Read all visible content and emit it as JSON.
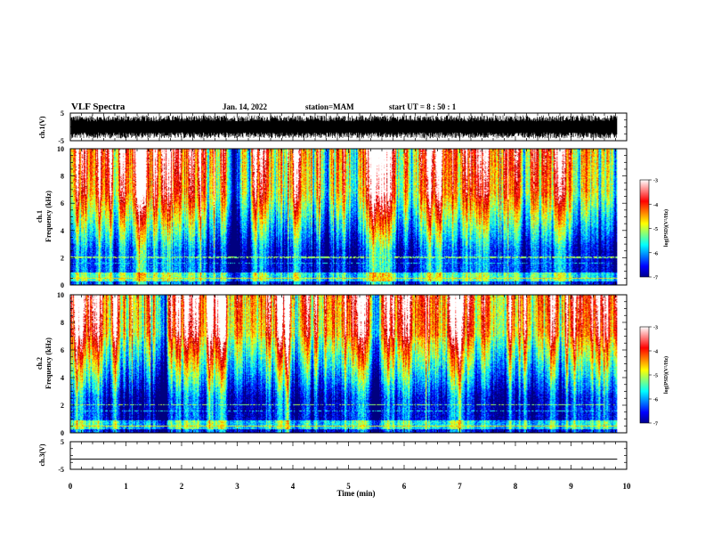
{
  "header": {
    "title": "VLF Spectra",
    "date": "Jan. 14, 2022",
    "station": "station=MAM",
    "start": "start UT =  8 : 50 : 1"
  },
  "chart_data": [
    {
      "type": "line",
      "name": "ch1-waveform",
      "ylabel": "ch.1(V)",
      "ylim": [
        -5,
        5
      ],
      "yticks": [
        "5",
        "-5"
      ],
      "note": "dense noise waveform filling approximately -4 to +4 V"
    },
    {
      "type": "heatmap",
      "name": "ch1-spectrogram",
      "ylabel_line1": "ch.1",
      "ylabel_line2": "Frequency (kHz)",
      "ylim": [
        0,
        10
      ],
      "yticks": [
        "0",
        "2",
        "4",
        "6",
        "8",
        "10"
      ],
      "colorbar": {
        "label": "log(PSD)(V²/Hz)",
        "range": [
          -7,
          -3
        ],
        "ticks": [
          "-3",
          "-4",
          "-5",
          "-6",
          "-7"
        ]
      },
      "note": "power increases with frequency: blue below ~3 kHz, cyan/green 3-6 kHz, yellow/red above 6 kHz; horizontal lines near 0.4 and 2 kHz"
    },
    {
      "type": "heatmap",
      "name": "ch2-spectrogram",
      "ylabel_line1": "ch.2",
      "ylabel_line2": "Frequency (kHz)",
      "ylim": [
        0,
        10
      ],
      "yticks": [
        "0",
        "2",
        "4",
        "6",
        "8",
        "10"
      ],
      "colorbar": {
        "label": "log(PSD)(V²/Hz)",
        "range": [
          -7,
          -3
        ],
        "ticks": [
          "-3",
          "-4",
          "-5",
          "-6",
          "-7"
        ]
      },
      "note": "similar to ch.1 with stronger blue region below ~2.5 kHz"
    },
    {
      "type": "line",
      "name": "ch3-waveform",
      "ylabel": "ch.3(V)",
      "ylim": [
        -5,
        5
      ],
      "yticks": [
        "5",
        "-5"
      ],
      "x": [
        0,
        9.83
      ],
      "y": [
        -1,
        -1
      ]
    }
  ],
  "xaxis": {
    "label": "Time (min)",
    "xlim": [
      0,
      10
    ],
    "ticks": [
      "0",
      "1",
      "2",
      "3",
      "4",
      "5",
      "6",
      "7",
      "8",
      "9",
      "10"
    ],
    "data_end": 9.83
  }
}
